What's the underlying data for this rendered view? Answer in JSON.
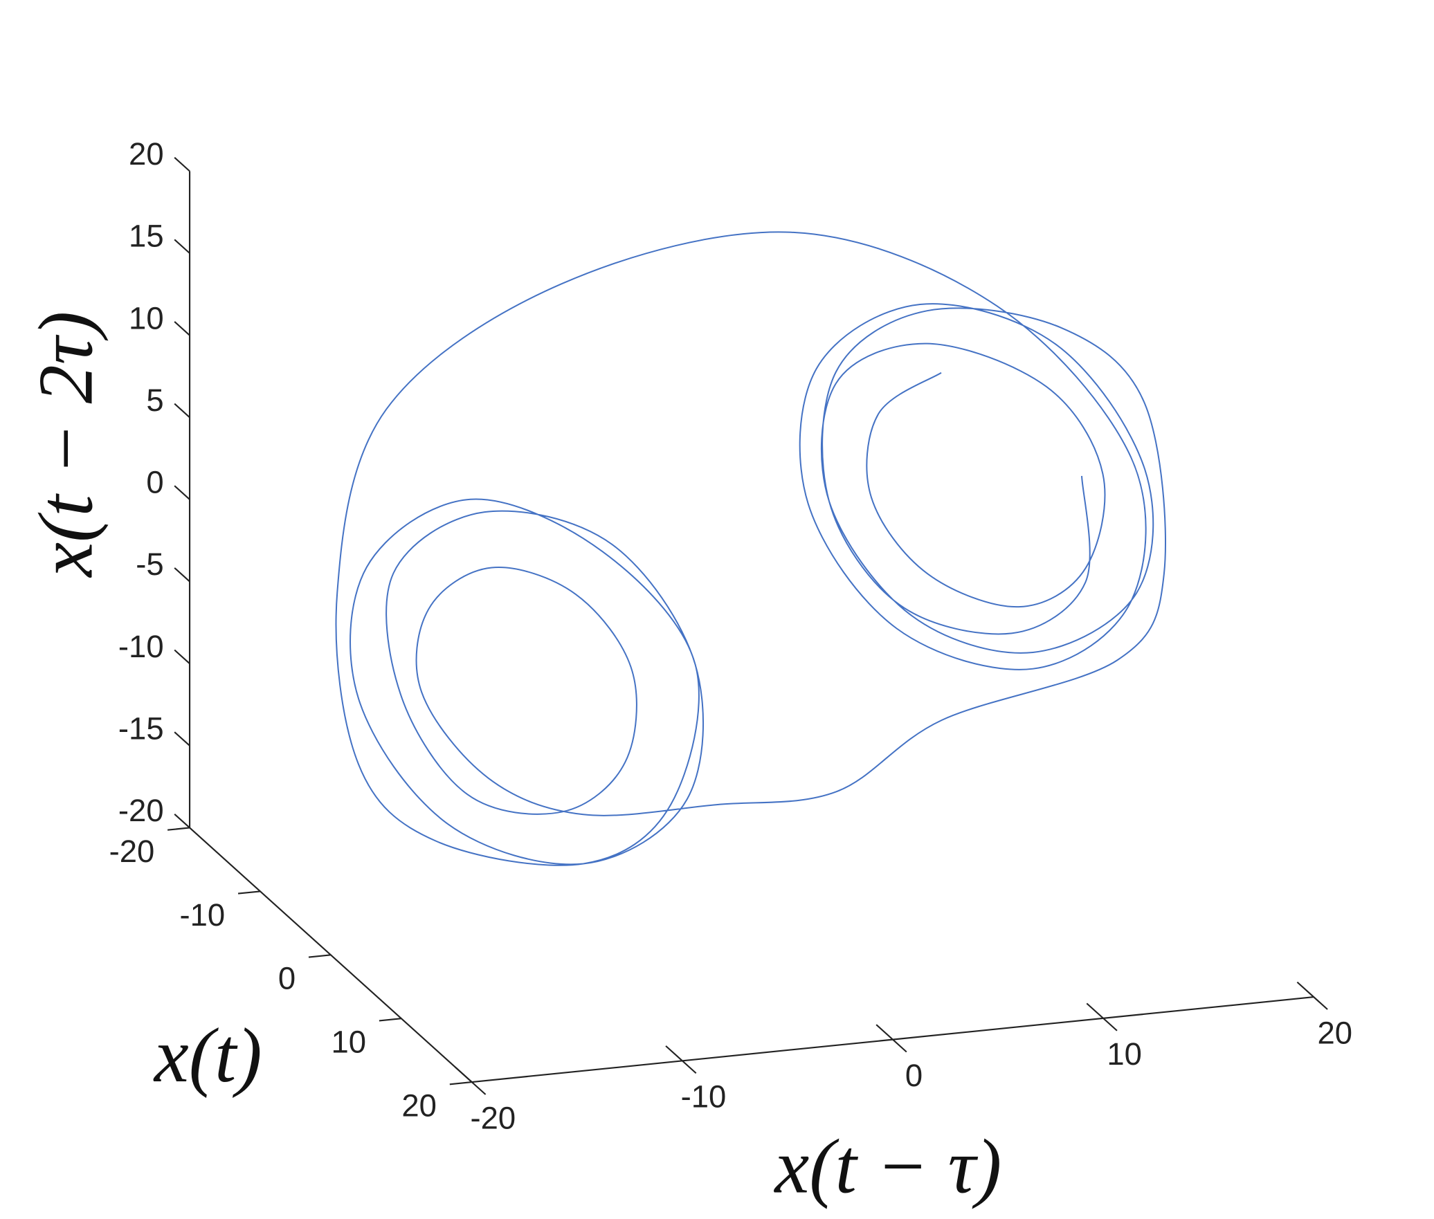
{
  "chart_data": {
    "type": "line3d",
    "xlabel": "x(t)",
    "ylabel": "x(t − τ)",
    "zlabel": "x(t − 2τ)",
    "xlim": [
      -20,
      20
    ],
    "xticks": [
      -20,
      -10,
      0,
      10,
      20
    ],
    "ylim": [
      -20,
      20
    ],
    "yticks": [
      -20,
      -10,
      0,
      10,
      20
    ],
    "zlim": [
      -20,
      20
    ],
    "zticks": [
      -20,
      -15,
      -10,
      -5,
      0,
      5,
      10,
      15,
      20
    ],
    "color": "#4472c4",
    "x": [
      3,
      4.5,
      8,
      11.5,
      14,
      13,
      8,
      3,
      1,
      3,
      8,
      13.7,
      16,
      13.7,
      8,
      2.3,
      0,
      2.3,
      8,
      13.7,
      16,
      13,
      6,
      -4,
      -12,
      -15,
      -16,
      -14,
      -8,
      -3,
      0,
      -2.5,
      -8,
      -13.7,
      -16,
      -13.7,
      -8,
      -2.3,
      0,
      -2.3,
      -8,
      -13,
      -14,
      -12,
      -8,
      -4.5,
      -3,
      -4.5,
      -8,
      -11.5,
      -13,
      -11.5,
      -8,
      -3,
      0,
      4,
      12,
      15,
      16,
      13.7,
      8,
      3,
      1,
      3,
      8,
      12,
      13,
      11.5,
      8
    ],
    "y": [
      8,
      4.5,
      3,
      4.5,
      8,
      11.5,
      14,
      13,
      8,
      3,
      1,
      3,
      8,
      13.7,
      16,
      13.7,
      8,
      2.3,
      0,
      2.3,
      8,
      13.7,
      16,
      13,
      6,
      -4,
      -12,
      -15,
      -16,
      -14,
      -8,
      -3,
      0,
      -2.5,
      -8,
      -13.7,
      -16,
      -13.7,
      -8,
      -2.3,
      0,
      -2.3,
      -8,
      -13,
      -14,
      -12,
      -8,
      -4.5,
      -3,
      -4.5,
      -8,
      -11.5,
      -13,
      -11.5,
      -8,
      -3,
      0,
      4,
      12,
      15,
      16,
      13.7,
      8,
      3,
      1,
      3,
      8,
      12,
      13
    ],
    "z": [
      13,
      11.5,
      8,
      4.5,
      3,
      4.5,
      8,
      11.5,
      14,
      13,
      8,
      3,
      1,
      3,
      8,
      13.7,
      16,
      13.7,
      8,
      2.3,
      0,
      2.3,
      8,
      13.7,
      16,
      13,
      6,
      -4,
      -12,
      -15,
      -16,
      -14,
      -8,
      -3,
      0,
      -2.5,
      -8,
      -13.7,
      -16,
      -13.7,
      -8,
      -2.3,
      0,
      -2.3,
      -8,
      -13,
      -14,
      -12,
      -8,
      -4.5,
      -3,
      -4.5,
      -8,
      -11.5,
      -13,
      -11.5,
      -8,
      -3,
      0,
      4,
      12,
      15,
      16,
      13.7,
      8,
      3,
      1,
      3,
      8
    ]
  }
}
